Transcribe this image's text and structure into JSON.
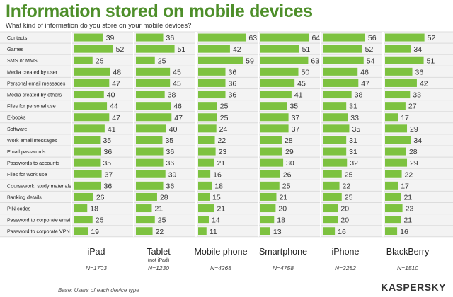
{
  "title": "Information stored on mobile devices",
  "subtitle": "What kind of information do you store on your mobile devices?",
  "footnote": "Base: Users of each device type",
  "logo_text": "KASPERSKY",
  "colors": {
    "bar": "#7dc240",
    "title": "#4e8f2a"
  },
  "chart_data": {
    "type": "bar",
    "orientation": "horizontal",
    "categories": [
      "Contacts",
      "Games",
      "SMS or MMS",
      "Media created by user",
      "Personal email messages",
      "Media created by others",
      "Files for personal use",
      "E-books",
      "Software",
      "Work email messages",
      "Email passwords",
      "Passwords to accounts",
      "Files for work use",
      "Coursework, study materials",
      "Banking details",
      "PIN codes",
      "Password to corporate email",
      "Password to corporate VPN"
    ],
    "series": [
      {
        "name": "iPad",
        "sub": "",
        "n": "N=1703",
        "values": [
          39,
          52,
          25,
          48,
          47,
          40,
          44,
          47,
          41,
          35,
          36,
          35,
          37,
          36,
          26,
          18,
          25,
          19
        ]
      },
      {
        "name": "Tablet",
        "sub": "(not iPad)",
        "n": "N=1230",
        "values": [
          36,
          51,
          25,
          45,
          45,
          38,
          46,
          47,
          40,
          35,
          36,
          36,
          39,
          36,
          28,
          21,
          25,
          22
        ]
      },
      {
        "name": "Mobile phone",
        "sub": "",
        "n": "N=4268",
        "values": [
          63,
          42,
          59,
          36,
          36,
          36,
          25,
          25,
          24,
          22,
          23,
          21,
          16,
          18,
          15,
          21,
          14,
          11
        ]
      },
      {
        "name": "Smartphone",
        "sub": "",
        "n": "N=4758",
        "values": [
          64,
          51,
          63,
          50,
          45,
          41,
          35,
          37,
          37,
          28,
          29,
          30,
          26,
          25,
          21,
          20,
          18,
          13
        ]
      },
      {
        "name": "iPhone",
        "sub": "",
        "n": "N=2282",
        "values": [
          56,
          52,
          54,
          46,
          47,
          38,
          31,
          33,
          35,
          31,
          31,
          32,
          25,
          22,
          25,
          20,
          20,
          16
        ]
      },
      {
        "name": "BlackBerry",
        "sub": "",
        "n": "N=1510",
        "values": [
          52,
          34,
          51,
          36,
          42,
          33,
          27,
          17,
          29,
          34,
          28,
          29,
          22,
          17,
          21,
          23,
          21,
          16
        ]
      }
    ]
  }
}
